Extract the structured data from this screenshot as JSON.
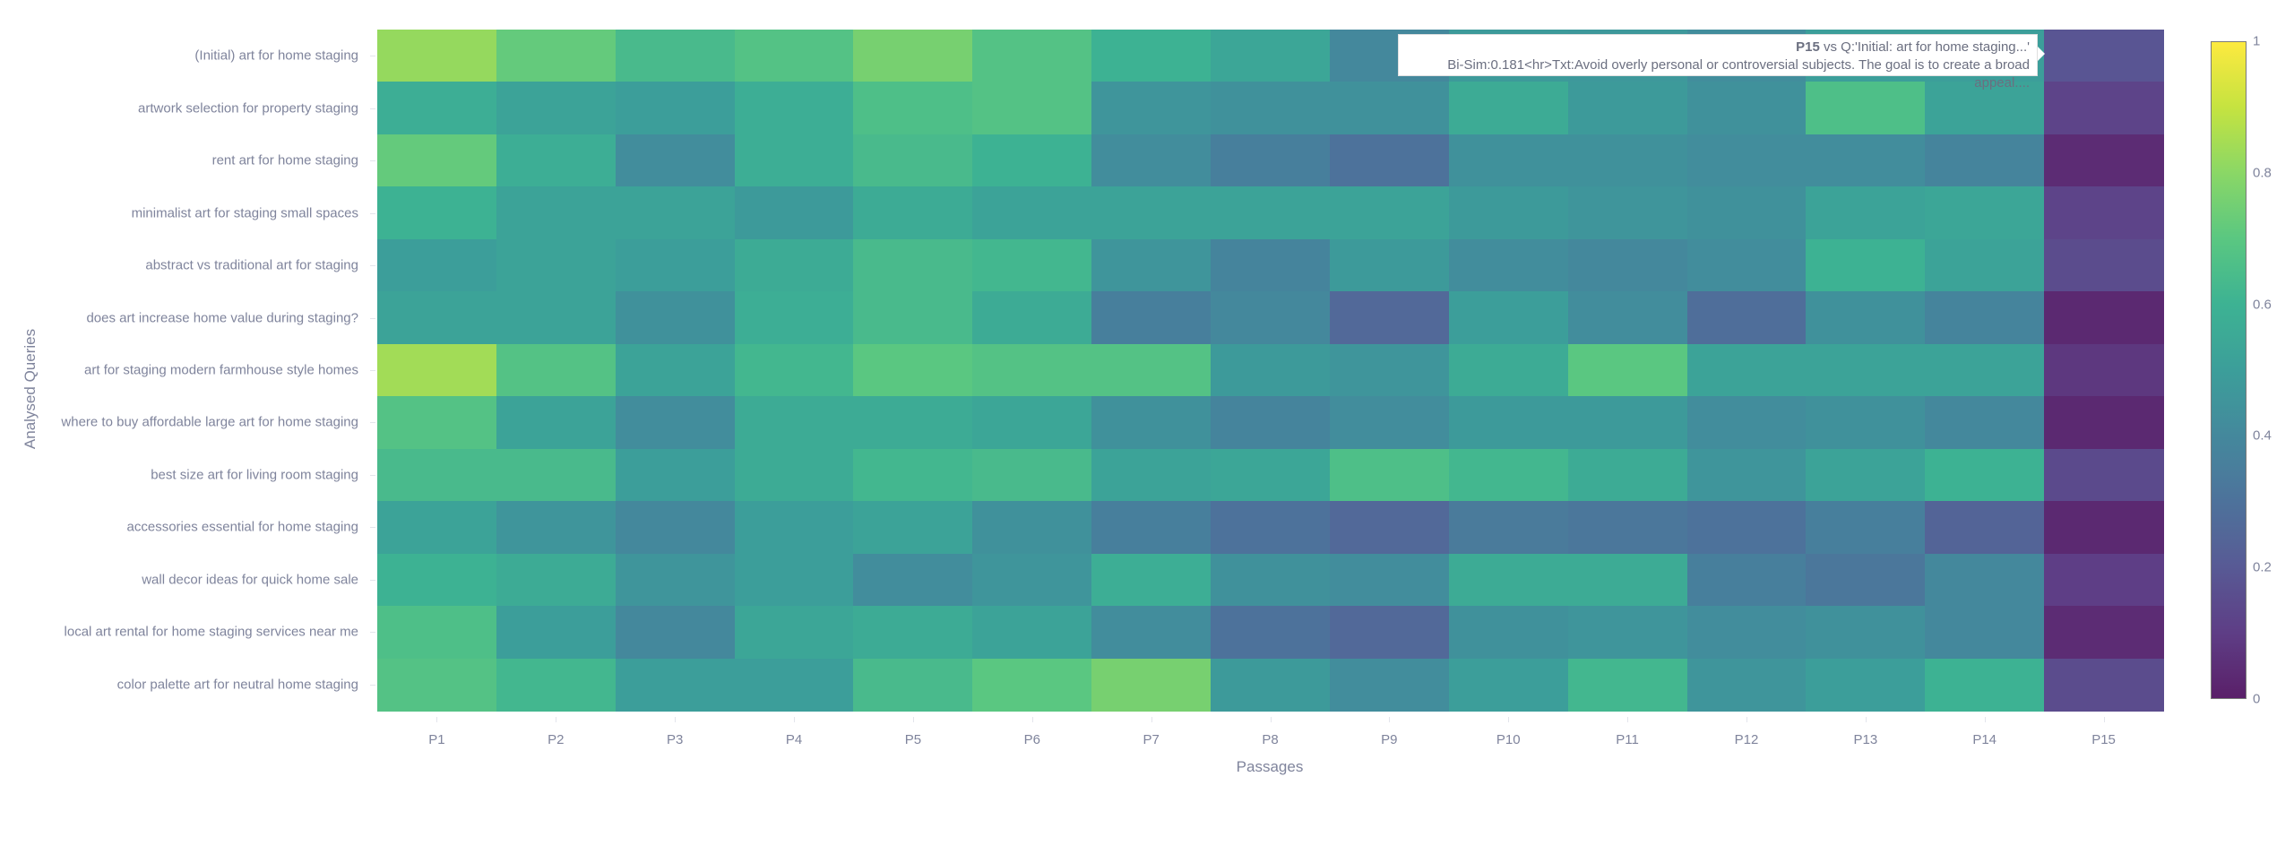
{
  "chart_data": {
    "type": "heatmap",
    "title": "",
    "xlabel": "Passages",
    "ylabel": "Analysed Queries",
    "x": [
      "P1",
      "P2",
      "P3",
      "P4",
      "P5",
      "P6",
      "P7",
      "P8",
      "P9",
      "P10",
      "P11",
      "P12",
      "P13",
      "P14",
      "P15"
    ],
    "y": [
      "(Initial) art for home staging",
      "artwork selection for property staging",
      "rent art for home staging",
      "minimalist art for staging small spaces",
      "abstract vs traditional art for staging",
      "does art increase home value during staging?",
      "art for staging modern farmhouse style homes",
      "where to buy affordable large art for home staging",
      "best size art for living room staging",
      "accessories essential for home staging",
      "wall decor ideas for quick home sale",
      "local art rental for home staging services near me",
      "color palette art for neutral home staging"
    ],
    "z": [
      [
        0.82,
        0.72,
        0.64,
        0.68,
        0.76,
        0.68,
        0.6,
        0.54,
        0.4,
        0.48,
        0.47,
        0.42,
        0.5,
        0.5,
        0.181
      ],
      [
        0.58,
        0.52,
        0.5,
        0.58,
        0.66,
        0.68,
        0.46,
        0.44,
        0.44,
        0.56,
        0.48,
        0.44,
        0.66,
        0.52,
        0.12
      ],
      [
        0.72,
        0.58,
        0.42,
        0.58,
        0.64,
        0.6,
        0.42,
        0.36,
        0.3,
        0.44,
        0.44,
        0.42,
        0.42,
        0.38,
        0.04
      ],
      [
        0.6,
        0.52,
        0.52,
        0.48,
        0.56,
        0.52,
        0.52,
        0.52,
        0.52,
        0.48,
        0.46,
        0.44,
        0.52,
        0.54,
        0.12
      ],
      [
        0.5,
        0.52,
        0.5,
        0.56,
        0.64,
        0.62,
        0.46,
        0.38,
        0.48,
        0.42,
        0.4,
        0.42,
        0.6,
        0.52,
        0.15
      ],
      [
        0.52,
        0.52,
        0.44,
        0.58,
        0.64,
        0.56,
        0.36,
        0.4,
        0.26,
        0.5,
        0.42,
        0.28,
        0.44,
        0.38,
        0.03
      ],
      [
        0.84,
        0.68,
        0.52,
        0.62,
        0.7,
        0.68,
        0.68,
        0.48,
        0.46,
        0.56,
        0.7,
        0.52,
        0.52,
        0.52,
        0.08
      ],
      [
        0.68,
        0.52,
        0.42,
        0.56,
        0.56,
        0.54,
        0.44,
        0.38,
        0.42,
        0.48,
        0.48,
        0.42,
        0.44,
        0.4,
        0.03
      ],
      [
        0.64,
        0.64,
        0.5,
        0.56,
        0.62,
        0.64,
        0.52,
        0.54,
        0.66,
        0.62,
        0.56,
        0.46,
        0.52,
        0.6,
        0.14
      ],
      [
        0.52,
        0.46,
        0.4,
        0.5,
        0.52,
        0.44,
        0.36,
        0.3,
        0.26,
        0.34,
        0.32,
        0.3,
        0.36,
        0.24,
        0.03
      ],
      [
        0.6,
        0.56,
        0.46,
        0.5,
        0.42,
        0.46,
        0.58,
        0.44,
        0.42,
        0.56,
        0.56,
        0.36,
        0.32,
        0.4,
        0.1
      ],
      [
        0.66,
        0.5,
        0.4,
        0.54,
        0.56,
        0.52,
        0.42,
        0.3,
        0.26,
        0.44,
        0.46,
        0.42,
        0.44,
        0.4,
        0.04
      ],
      [
        0.68,
        0.62,
        0.5,
        0.5,
        0.64,
        0.7,
        0.76,
        0.48,
        0.42,
        0.5,
        0.62,
        0.46,
        0.5,
        0.6,
        0.15
      ]
    ],
    "colorscale": "Viridis",
    "zrange": [
      0,
      1
    ],
    "colorbar_ticks": [
      "0",
      "0.2",
      "0.4",
      "0.6",
      "0.8",
      "1"
    ],
    "grid": false,
    "legend_position": "right (colorbar)"
  },
  "tooltip": {
    "passage": "P15",
    "line1_rest": " vs Q:'Initial: art for home staging...'",
    "line2": "Bi-Sim:0.181<hr>Txt:Avoid overly personal or controversial subjects. The goal is to create a broad appeal...."
  },
  "colors": {
    "axis_text": "#7f849c",
    "background": "#ffffff"
  }
}
